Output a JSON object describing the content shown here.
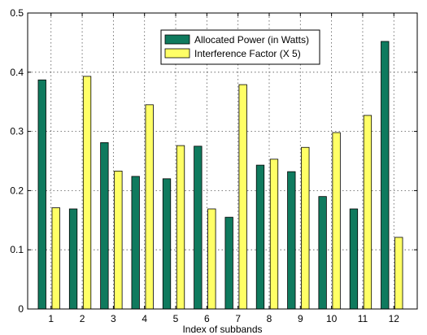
{
  "chart_data": {
    "type": "bar",
    "xlabel": "Index of subbands",
    "ylabel": "",
    "ylim": [
      0,
      0.5
    ],
    "yticks": [
      "0",
      "0.1",
      "0.2",
      "0.3",
      "0.4",
      "0.5"
    ],
    "categories": [
      "1",
      "2",
      "3",
      "4",
      "5",
      "6",
      "7",
      "8",
      "9",
      "10",
      "11",
      "12"
    ],
    "grid": true,
    "legend_position": "top-right",
    "series": [
      {
        "name": "Allocated Power (in Watts)",
        "color": "#0f7a5e",
        "values": [
          0.387,
          0.169,
          0.281,
          0.224,
          0.22,
          0.275,
          0.155,
          0.243,
          0.232,
          0.19,
          0.169,
          0.452
        ]
      },
      {
        "name": "Interference Factor (X 5)",
        "color": "#ffff66",
        "values": [
          0.171,
          0.393,
          0.233,
          0.345,
          0.276,
          0.169,
          0.379,
          0.253,
          0.273,
          0.298,
          0.327,
          0.121
        ]
      }
    ]
  }
}
